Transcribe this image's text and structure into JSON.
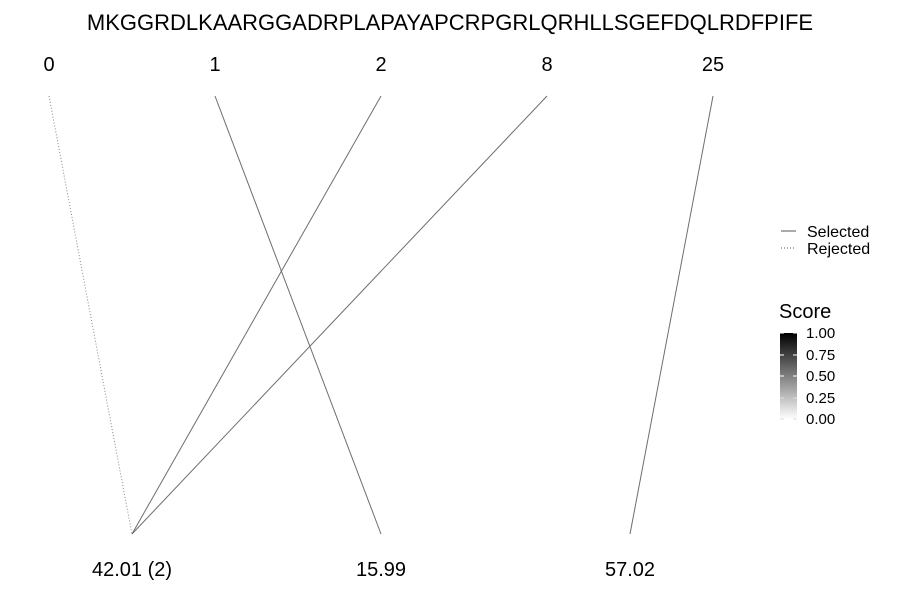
{
  "sequence": "MKGGRDLKAARGGADRPLAPAYAPCRPGRLQRHLLSGEFDQLRDFPIFE",
  "top_nodes": [
    {
      "id": "t0",
      "label": "0"
    },
    {
      "id": "t1",
      "label": "1"
    },
    {
      "id": "t2",
      "label": "2"
    },
    {
      "id": "t8",
      "label": "8"
    },
    {
      "id": "t25",
      "label": "25"
    }
  ],
  "bottom_nodes": [
    {
      "id": "b0",
      "label": "42.01 (2)"
    },
    {
      "id": "b1",
      "label": "15.99"
    },
    {
      "id": "b2",
      "label": "57.02"
    }
  ],
  "links": [
    {
      "from": "t0",
      "to": "b0",
      "type": "rejected",
      "score": 0.0
    },
    {
      "from": "t1",
      "to": "b1",
      "type": "selected",
      "score": 0.5
    },
    {
      "from": "t2",
      "to": "b0",
      "type": "selected",
      "score": 0.5
    },
    {
      "from": "t8",
      "to": "b0",
      "type": "selected",
      "score": 0.5
    },
    {
      "from": "t25",
      "to": "b2",
      "type": "selected",
      "score": 0.5
    }
  ],
  "legend": {
    "selected_label": "Selected",
    "rejected_label": "Rejected"
  },
  "colorbar": {
    "title": "Score",
    "ticks": [
      "1.00",
      "0.75",
      "0.50",
      "0.25",
      "0.00"
    ],
    "low_color": "#ffffff",
    "high_color": "#000000"
  }
}
